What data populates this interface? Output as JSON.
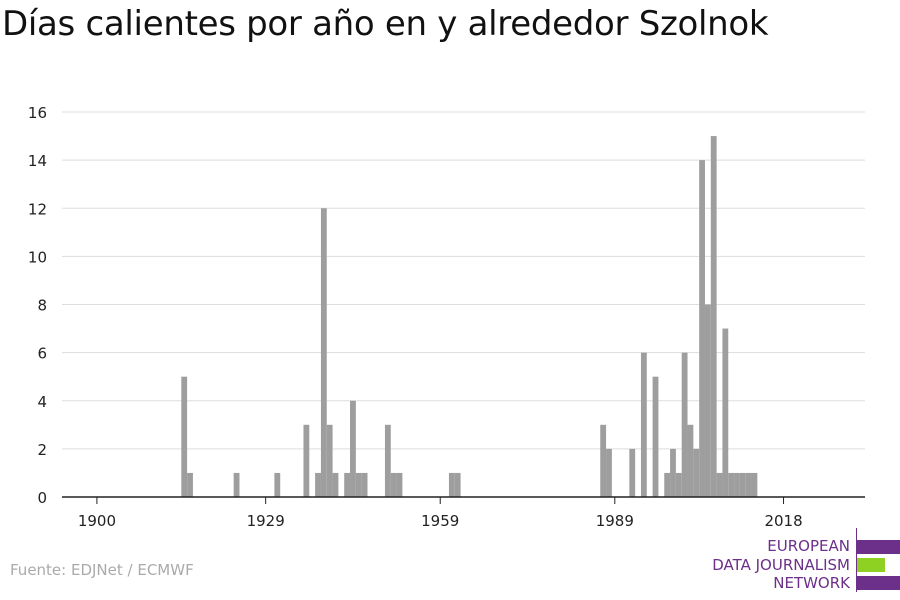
{
  "chart_data": {
    "type": "bar",
    "title": "Días calientes por año en y alrededor Szolnok",
    "xlabel": "",
    "ylabel": "",
    "xlim": [
      1894,
      2032
    ],
    "ylim": [
      0,
      16
    ],
    "yticks": [
      0,
      2,
      4,
      6,
      8,
      10,
      12,
      14,
      16
    ],
    "xticks": [
      1900,
      1929,
      1959,
      1989,
      2018
    ],
    "grid": true,
    "bar_color": "#9e9e9e",
    "x": [
      1915,
      1916,
      1924,
      1931,
      1936,
      1938,
      1939,
      1940,
      1941,
      1943,
      1944,
      1945,
      1946,
      1950,
      1951,
      1952,
      1961,
      1962,
      1987,
      1988,
      1992,
      1994,
      1996,
      1998,
      1999,
      2000,
      2001,
      2002,
      2003,
      2004,
      2005,
      2006,
      2007,
      2008,
      2009,
      2010,
      2011,
      2012,
      2013
    ],
    "values": [
      5,
      1,
      1,
      1,
      3,
      1,
      12,
      3,
      1,
      1,
      4,
      1,
      1,
      3,
      1,
      1,
      1,
      1,
      3,
      2,
      2,
      6,
      5,
      1,
      2,
      1,
      6,
      3,
      2,
      14,
      8,
      15,
      1,
      7,
      1,
      1,
      1,
      1,
      1
    ]
  },
  "source": "Fuente: EDJNet / ECMWF",
  "logo": {
    "line1": "EUROPEAN",
    "line2": "DATA JOURNALISM",
    "line3": "NETWORK",
    "color_purple": "#6c2f8a",
    "color_green": "#8fd122"
  }
}
